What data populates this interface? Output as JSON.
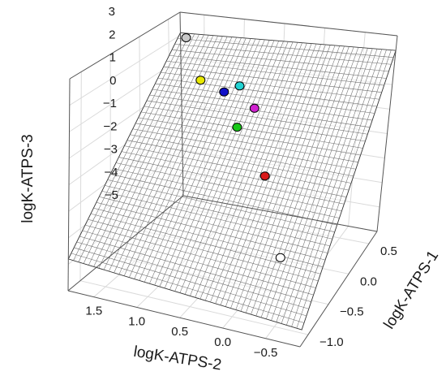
{
  "chart_data": {
    "type": "scatter3d",
    "xlabel": "logK-ATPS-1",
    "ylabel": "logK-ATPS-2",
    "zlabel": "logK-ATPS-3",
    "x_ticks": [
      "0.5",
      "0.0",
      "−0.5",
      "−1.0"
    ],
    "y_ticks": [
      "1.5",
      "1.0",
      "0.5",
      "0.0",
      "−0.5"
    ],
    "z_ticks": [
      "3",
      "2",
      "1",
      "0",
      "−1",
      "−2",
      "−3",
      "−4",
      "−5"
    ],
    "xlim": [
      -1.2,
      0.7
    ],
    "ylim": [
      -0.9,
      1.8
    ],
    "zlim": [
      -5,
      3
    ],
    "grid": true,
    "fit_surface": {
      "type": "plane",
      "z_at_back_left": 2.1,
      "z_at_back_right": 2.4,
      "z_at_front_left": -3.8,
      "z_at_front_right": -3.9
    },
    "points": [
      {
        "x": 0.55,
        "y": 1.62,
        "z": 2.22,
        "color": "#c8c8c8"
      },
      {
        "x": -0.08,
        "y": 0.55,
        "z": 2.45,
        "color": "#22d3d3"
      },
      {
        "x": 0.07,
        "y": 0.45,
        "z": 1.15,
        "color": "#d022d0"
      },
      {
        "x": 0.42,
        "y": 1.05,
        "z": 0.5,
        "color": "#1010c8"
      },
      {
        "x": 0.7,
        "y": 1.55,
        "z": 0.15,
        "color": "#e8e800"
      },
      {
        "x": 0.18,
        "y": 0.72,
        "z": -0.2,
        "color": "#18c818"
      },
      {
        "x": -0.35,
        "y": 0.05,
        "z": -0.2,
        "color": "#d81818"
      },
      {
        "x": -1.1,
        "y": -0.55,
        "z": -0.6,
        "color": "#ffffff"
      }
    ]
  }
}
